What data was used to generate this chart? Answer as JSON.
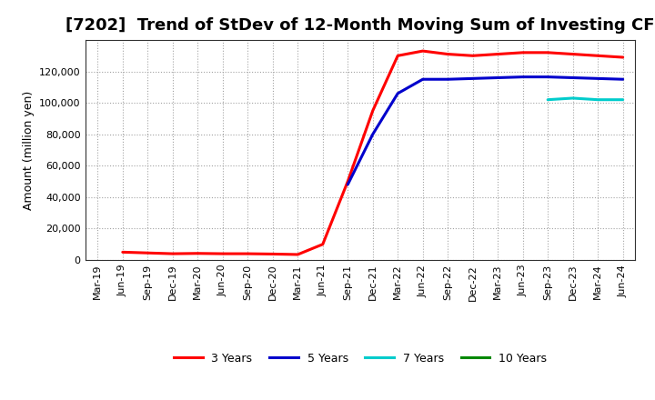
{
  "title": "[7202]  Trend of StDev of 12-Month Moving Sum of Investing CF",
  "ylabel": "Amount (million yen)",
  "background_color": "#ffffff",
  "plot_bg_color": "#ffffff",
  "grid_color": "#999999",
  "series": {
    "3 Years": {
      "color": "#ff0000",
      "dates": [
        "Mar-19",
        "Jun-19",
        "Sep-19",
        "Dec-19",
        "Mar-20",
        "Jun-20",
        "Sep-20",
        "Dec-20",
        "Mar-21",
        "Jun-21",
        "Sep-21",
        "Dec-21",
        "Mar-22",
        "Jun-22",
        "Sep-22",
        "Dec-22",
        "Mar-23",
        "Jun-23",
        "Sep-23",
        "Dec-23",
        "Mar-24",
        "Jun-24"
      ],
      "values": [
        null,
        5000,
        4500,
        4000,
        4200,
        4000,
        4000,
        3800,
        3500,
        10000,
        50000,
        95000,
        130000,
        133000,
        131000,
        130000,
        131000,
        132000,
        132000,
        131000,
        130000,
        129000
      ]
    },
    "5 Years": {
      "color": "#0000cc",
      "dates": [
        "Jun-21",
        "Sep-21",
        "Dec-21",
        "Mar-22",
        "Jun-22",
        "Sep-22",
        "Dec-22",
        "Mar-23",
        "Jun-23",
        "Sep-23",
        "Dec-23",
        "Mar-24",
        "Jun-24"
      ],
      "values": [
        null,
        48000,
        80000,
        106000,
        115000,
        115000,
        115500,
        116000,
        116500,
        116500,
        116000,
        115500,
        115000
      ]
    },
    "7 Years": {
      "color": "#00cccc",
      "dates": [
        "Sep-23",
        "Dec-23",
        "Mar-24",
        "Jun-24"
      ],
      "values": [
        102000,
        103000,
        102000,
        102000
      ]
    },
    "10 Years": {
      "color": "#008800",
      "dates": [],
      "values": []
    }
  },
  "ylim": [
    0,
    140000
  ],
  "yticks": [
    0,
    20000,
    40000,
    60000,
    80000,
    100000,
    120000
  ],
  "xtick_labels": [
    "Mar-19",
    "Jun-19",
    "Sep-19",
    "Dec-19",
    "Mar-20",
    "Jun-20",
    "Sep-20",
    "Dec-20",
    "Mar-21",
    "Jun-21",
    "Sep-21",
    "Dec-21",
    "Mar-22",
    "Jun-22",
    "Sep-22",
    "Dec-22",
    "Mar-23",
    "Jun-23",
    "Sep-23",
    "Dec-23",
    "Mar-24",
    "Jun-24"
  ],
  "linewidth": 2.2,
  "title_fontsize": 13,
  "ylabel_fontsize": 9,
  "tick_fontsize": 8,
  "legend_fontsize": 9
}
